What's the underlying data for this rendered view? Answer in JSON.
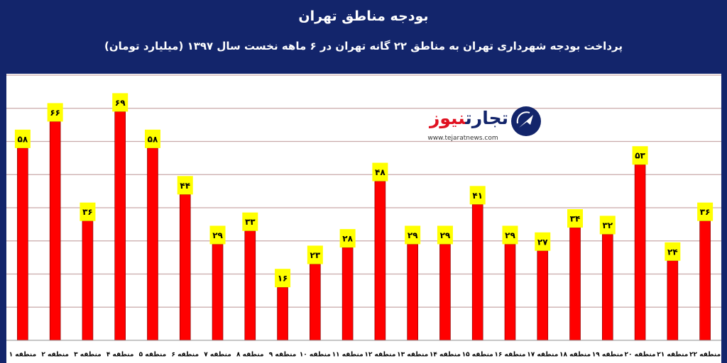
{
  "colors": {
    "frame": "#13256b",
    "bar": "#ff0000",
    "bar_edge": "#7a0000",
    "label_bg": "#ffff00",
    "grid": "#c9a9a9"
  },
  "logo": {
    "name_part1": "تجارت",
    "name_part2": "نیوز",
    "url": "www.tejaratnews.com"
  },
  "chart_data": {
    "type": "bar",
    "title": "بودجه مناطق تهران",
    "subtitle": "پرداخت بودجه شهرداری تهران به مناطق ۲۲ گانه تهران در ۶ ماهه نخست سال ۱۳۹۷ (میلیارد تومان)",
    "categories": [
      "منطقه ۱",
      "منطقه ۲",
      "منطقه ۳",
      "منطقه ۴",
      "منطقه ۵",
      "منطقه ۶",
      "منطقه ۷",
      "منطقه ۸",
      "منطقه ۹",
      "منطقه ۱۰",
      "منطقه ۱۱",
      "منطقه ۱۲",
      "منطقه ۱۳",
      "منطقه ۱۴",
      "منطقه ۱۵",
      "منطقه ۱۶",
      "منطقه ۱۷",
      "منطقه ۱۸",
      "منطقه ۱۹",
      "منطقه ۲۰",
      "منطقه ۲۱",
      "منطقه ۲۲"
    ],
    "values": [
      58,
      66,
      36,
      69,
      58,
      44,
      29,
      33,
      16,
      23,
      28,
      48,
      29,
      29,
      41,
      29,
      27,
      34,
      32,
      53,
      24,
      36
    ],
    "value_labels": [
      "۵۸",
      "۶۶",
      "۳۶",
      "۶۹",
      "۵۸",
      "۴۴",
      "۲۹",
      "۳۳",
      "۱۶",
      "۲۳",
      "۲۸",
      "۴۸",
      "۲۹",
      "۲۹",
      "۴۱",
      "۲۹",
      "۲۷",
      "۳۴",
      "۳۲",
      "۵۳",
      "۲۴",
      "۳۶"
    ],
    "ylim": [
      0,
      80
    ],
    "grid": true,
    "grid_step": 10,
    "legend": "none"
  }
}
